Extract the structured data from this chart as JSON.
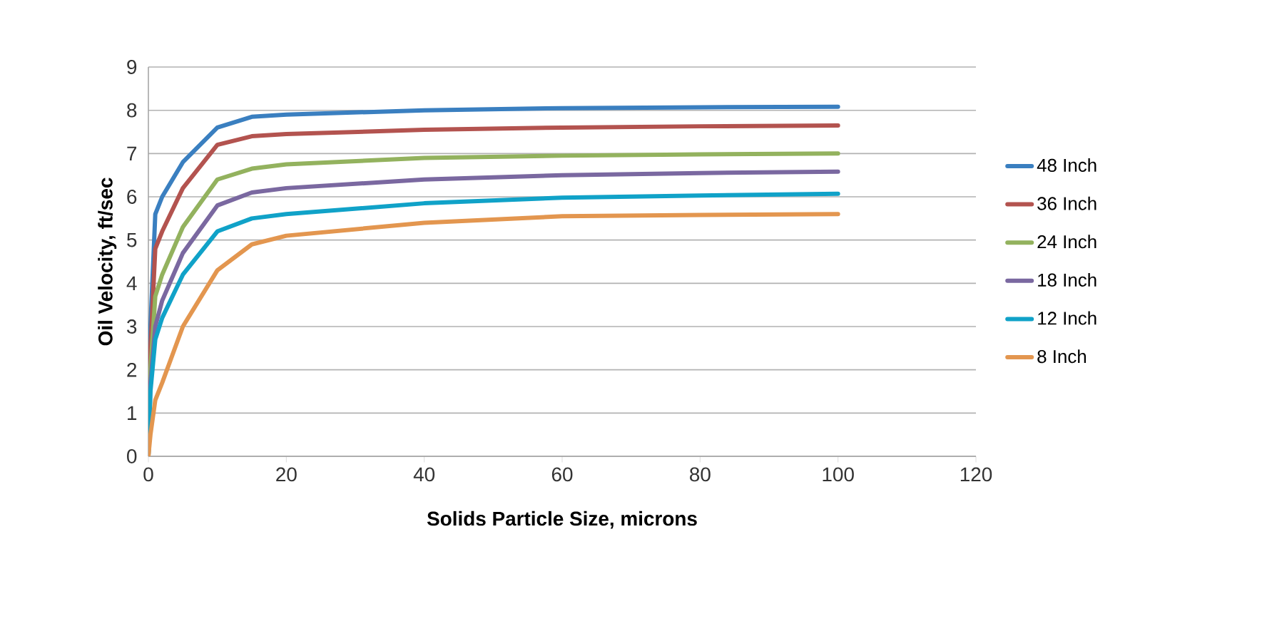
{
  "chart_data": {
    "type": "line",
    "xlabel": "Solids Particle Size, microns",
    "ylabel": "Oil Velocity, ft/sec",
    "xlim": [
      0,
      120
    ],
    "xticks": [
      0,
      20,
      40,
      60,
      80,
      100,
      120
    ],
    "ylim": [
      0,
      9
    ],
    "yticks": [
      0,
      1,
      2,
      3,
      4,
      5,
      6,
      7,
      8,
      9
    ],
    "grid": "y",
    "legend": "right",
    "marker": "none",
    "line_style": "solid",
    "x": [
      0,
      0.3,
      1,
      2,
      5,
      10,
      15,
      20,
      40,
      60,
      80,
      100
    ],
    "series": [
      {
        "name": "48 Inch",
        "color": "#3a7fc0",
        "values": [
          0,
          3.0,
          5.6,
          6.0,
          6.8,
          7.6,
          7.85,
          7.9,
          8.0,
          8.05,
          8.07,
          8.08
        ]
      },
      {
        "name": "36 Inch",
        "color": "#b3534f",
        "values": [
          0,
          2.5,
          4.8,
          5.2,
          6.2,
          7.2,
          7.4,
          7.45,
          7.55,
          7.6,
          7.63,
          7.65
        ]
      },
      {
        "name": "24 Inch",
        "color": "#93b25e",
        "values": [
          0,
          2.0,
          3.7,
          4.2,
          5.3,
          6.4,
          6.65,
          6.75,
          6.9,
          6.95,
          6.98,
          7.0
        ]
      },
      {
        "name": "18 Inch",
        "color": "#7a68a0",
        "values": [
          0,
          1.7,
          3.0,
          3.6,
          4.7,
          5.8,
          6.1,
          6.2,
          6.4,
          6.5,
          6.55,
          6.58
        ]
      },
      {
        "name": "12 Inch",
        "color": "#10a2c8",
        "values": [
          0,
          1.5,
          2.7,
          3.2,
          4.2,
          5.2,
          5.5,
          5.6,
          5.85,
          5.98,
          6.03,
          6.07
        ]
      },
      {
        "name": "8 Inch",
        "color": "#e3964f",
        "values": [
          0,
          0.5,
          1.3,
          1.7,
          3.0,
          4.3,
          4.9,
          5.1,
          5.4,
          5.55,
          5.58,
          5.6
        ]
      }
    ]
  }
}
